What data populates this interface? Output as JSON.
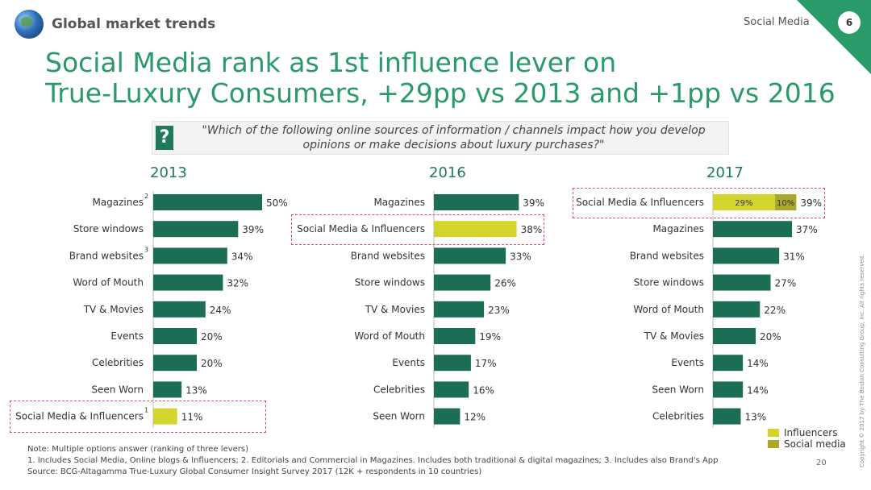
{
  "header": {
    "section_title": "Global market trends",
    "corner_label": "Social Media",
    "page_number": "6"
  },
  "headline": {
    "line1": "Social Media rank as 1st influence lever on",
    "line2": "True-Luxury Consumers, +29pp vs 2013 and +1pp vs 2016"
  },
  "question": {
    "icon": "?",
    "text": "\"Which of the following online sources of information / channels impact how you develop opinions or make decisions about luxury purchases?\""
  },
  "chart_data": [
    {
      "type": "bar",
      "orientation": "horizontal",
      "title": "2013",
      "categories": [
        "Magazines",
        "Store windows",
        "Brand websites",
        "Word of Mouth",
        "TV & Movies",
        "Events",
        "Celebrities",
        "Seen Worn",
        "Social Media & Influencers"
      ],
      "category_footnotes": [
        "2",
        "",
        "3",
        "",
        "",
        "",
        "",
        "",
        "1"
      ],
      "values": [
        50,
        39,
        34,
        32,
        24,
        20,
        20,
        13,
        11
      ],
      "labels": [
        "50%",
        "39%",
        "34%",
        "32%",
        "24%",
        "20%",
        "20%",
        "13%",
        "11%"
      ],
      "highlight_index": 8
    },
    {
      "type": "bar",
      "orientation": "horizontal",
      "title": "2016",
      "categories": [
        "Magazines",
        "Social Media & Influencers",
        "Brand websites",
        "Store windows",
        "TV & Movies",
        "Word of Mouth",
        "Events",
        "Celebrities",
        "Seen Worn"
      ],
      "category_footnotes": [
        "",
        "",
        "",
        "",
        "",
        "",
        "",
        "",
        ""
      ],
      "values": [
        39,
        38,
        33,
        26,
        23,
        19,
        17,
        16,
        12
      ],
      "labels": [
        "39%",
        "38%",
        "33%",
        "26%",
        "23%",
        "19%",
        "17%",
        "16%",
        "12%"
      ],
      "highlight_index": 1
    },
    {
      "type": "bar",
      "orientation": "horizontal",
      "stacked_first_bar": true,
      "title": "2017",
      "categories": [
        "Social Media & Influencers",
        "Magazines",
        "Brand websites",
        "Store windows",
        "Word of Mouth",
        "TV & Movies",
        "Events",
        "Seen Worn",
        "Celebrities"
      ],
      "category_footnotes": [
        "",
        "",
        "",
        "",
        "",
        "",
        "",
        "",
        ""
      ],
      "values": [
        39,
        37,
        31,
        27,
        22,
        20,
        14,
        14,
        13
      ],
      "labels": [
        "39%",
        "37%",
        "31%",
        "27%",
        "22%",
        "20%",
        "14%",
        "14%",
        "13%"
      ],
      "first_bar_segments": [
        {
          "name": "Influencers",
          "value": 29,
          "label": "29%"
        },
        {
          "name": "Social media",
          "value": 10,
          "label": "10%"
        }
      ],
      "highlight_index": 0
    }
  ],
  "legend": [
    {
      "name": "Influencers",
      "color": "#d4d42e"
    },
    {
      "name": "Social media",
      "color": "#a9a82a"
    }
  ],
  "colors": {
    "bar": "#1b6e55",
    "highlight": "#d4d42e",
    "social_media": "#a9a82a",
    "accent": "#2a9a6a",
    "dash": "#e34a6b"
  },
  "footnotes": {
    "note": "Note: Multiple options answer (ranking of three levers)",
    "line1": "1. Includes Social Media, Online blogs & Influencers; 2. Editorials and Commercial in Magazines. Includes both traditional & digital magazines; 3. Includes also Brand's App",
    "source": "Source: BCG-Altagamma True-Luxury Global Consumer Insight Survey 2017 (12K + respondents in 10 countries)"
  },
  "slide_number": "20",
  "copyright": "Copyright © 2017 by The Boston Consulting Group, Inc. All rights reserved."
}
